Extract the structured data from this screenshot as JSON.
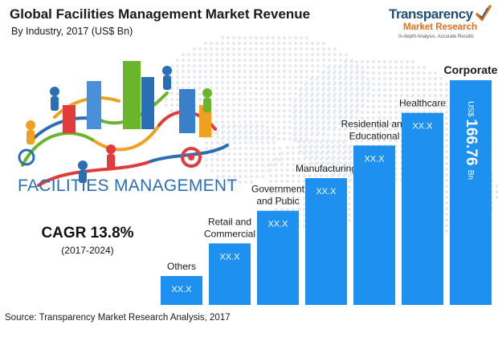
{
  "title": "Global Facilities Management Market Revenue",
  "subtitle": "By Industry, 2017 (US$ Bn)",
  "logo": {
    "line1": "Transparency",
    "line2": "Market Research",
    "tagline": "In-depth Analysis. Accurate Results"
  },
  "illustration_text": "FACILITIES MANAGEMENT",
  "cagr": {
    "label": "CAGR 13.8%",
    "period": "(2017-2024)"
  },
  "source": "Source: Transparency Market Research Analysis, 2017",
  "colors": {
    "bar": "#1e90f0",
    "bar_dark": "#1470c8",
    "title": "#1a1a1a",
    "accent": "#e07020"
  },
  "chart_data": {
    "type": "bar",
    "title": "Global Facilities Management Market Revenue",
    "subtitle": "By Industry, 2017 (US$ Bn)",
    "categories": [
      [
        "Others"
      ],
      [
        "Retail and",
        "Commercial"
      ],
      [
        "Government",
        "and Pubic"
      ],
      [
        "Manufacturing"
      ],
      [
        "Residential and",
        "Educational"
      ],
      [
        "Healthcare"
      ],
      [
        "Corporate"
      ]
    ],
    "data_labels": [
      "XX.X",
      "XX.X",
      "XX.X",
      "XX.X",
      "XX.X",
      "XX.X",
      "US$ 166.76 Bn"
    ],
    "corporate_value": 166.76,
    "unit": "US$ Bn"
  }
}
